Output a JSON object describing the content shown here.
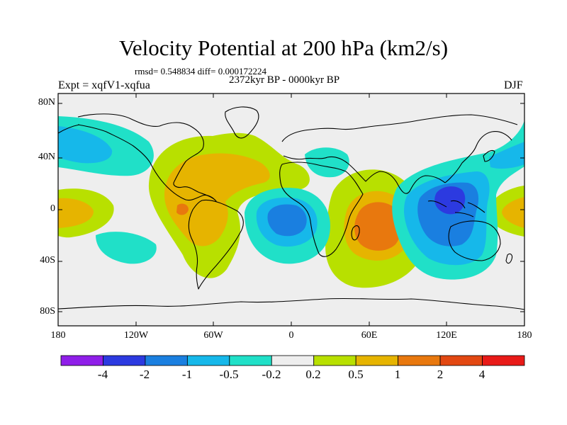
{
  "title": "Velocity Potential at 200 hPa (km2/s)",
  "stats": "rmsd= 0.548834  diff= 0.000172224",
  "experiment": "Expt = xqfV1-xqfua",
  "period": "2372kyr BP - 0000kyr BP",
  "season": "DJF",
  "axes": {
    "lat_labels": [
      "80N",
      "40N",
      "0",
      "40S",
      "80S"
    ],
    "lon_labels": [
      "180",
      "120W",
      "60W",
      "0",
      "60E",
      "120E",
      "180"
    ]
  },
  "colorbar": {
    "colors": [
      "#8f1ee8",
      "#2c3ae0",
      "#1a7fe0",
      "#16b8ea",
      "#20e0c8",
      "#eeeeee",
      "#b8e000",
      "#e6b400",
      "#e8780e",
      "#e24812",
      "#e81a18"
    ],
    "labels": [
      "-4",
      "-2",
      "-1",
      "-0.5",
      "-0.2",
      "0.2",
      "0.5",
      "1",
      "2",
      "4"
    ]
  },
  "colors": {
    "background": "#ffffff",
    "map_fill": "#eeeeee",
    "coastline": "#000000"
  }
}
